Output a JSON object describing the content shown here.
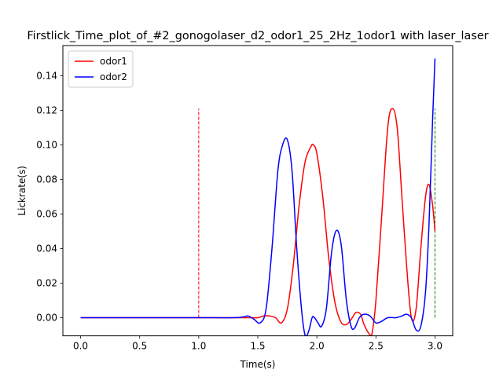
{
  "chart_data": {
    "type": "line",
    "title": "Firstlick_Time_plot_of_#2_gonogolaser_d2_odor1_25_2Hz_1odor1 with laser_laser",
    "xlabel": "Time(s)",
    "ylabel": "Lickrate(s)",
    "xlim": [
      -0.15,
      3.15
    ],
    "ylim": [
      -0.0105,
      0.1575
    ],
    "xticks": [
      0.0,
      0.5,
      1.0,
      1.5,
      2.0,
      2.5,
      3.0
    ],
    "xtick_labels": [
      "0.0",
      "0.5",
      "1.0",
      "1.5",
      "2.0",
      "2.5",
      "3.0"
    ],
    "yticks": [
      0.0,
      0.02,
      0.04,
      0.06,
      0.08,
      0.1,
      0.12,
      0.14
    ],
    "ytick_labels": [
      "0.00",
      "0.02",
      "0.04",
      "0.06",
      "0.08",
      "0.10",
      "0.12",
      "0.14"
    ],
    "grid": false,
    "legend_position": "top-left",
    "series": [
      {
        "name": "odor1",
        "color": "#ff0000",
        "x": [
          0.0,
          0.5,
          1.0,
          1.3,
          1.45,
          1.5,
          1.55,
          1.6,
          1.65,
          1.7,
          1.75,
          1.8,
          1.85,
          1.9,
          1.95,
          1.97,
          2.0,
          2.05,
          2.1,
          2.15,
          2.2,
          2.25,
          2.3,
          2.33,
          2.37,
          2.4,
          2.45,
          2.47,
          2.5,
          2.55,
          2.6,
          2.64,
          2.68,
          2.72,
          2.76,
          2.8,
          2.84,
          2.88,
          2.92,
          2.95,
          2.98,
          3.0
        ],
        "y": [
          0.0,
          0.0,
          0.0,
          0.0,
          0.0,
          0.0,
          0.001,
          0.001,
          0.0,
          -0.003,
          0.005,
          0.03,
          0.065,
          0.09,
          0.099,
          0.1,
          0.095,
          0.07,
          0.035,
          0.01,
          -0.002,
          -0.004,
          0.0,
          0.003,
          0.002,
          -0.004,
          -0.01,
          -0.008,
          0.01,
          0.06,
          0.11,
          0.121,
          0.11,
          0.07,
          0.03,
          0.0,
          0.005,
          0.04,
          0.07,
          0.077,
          0.065,
          0.05
        ]
      },
      {
        "name": "odor2",
        "color": "#0000ff",
        "x": [
          0.0,
          0.5,
          1.0,
          1.3,
          1.38,
          1.42,
          1.47,
          1.52,
          1.57,
          1.62,
          1.67,
          1.71,
          1.75,
          1.79,
          1.83,
          1.87,
          1.9,
          1.93,
          1.96,
          1.98,
          2.01,
          2.04,
          2.08,
          2.12,
          2.15,
          2.18,
          2.21,
          2.25,
          2.29,
          2.32,
          2.36,
          2.4,
          2.45,
          2.5,
          2.55,
          2.6,
          2.67,
          2.72,
          2.76,
          2.8,
          2.84,
          2.88,
          2.92,
          2.95,
          2.98,
          3.0
        ],
        "y": [
          0.0,
          0.0,
          0.0,
          0.0,
          0.0005,
          0.001,
          -0.001,
          -0.003,
          0.005,
          0.04,
          0.085,
          0.1,
          0.103,
          0.085,
          0.04,
          0.005,
          -0.01,
          -0.008,
          0.0,
          0.0,
          -0.003,
          -0.005,
          0.005,
          0.035,
          0.048,
          0.05,
          0.04,
          0.01,
          -0.005,
          -0.006,
          0.0,
          0.002,
          0.001,
          -0.003,
          -0.002,
          0.0,
          0.0,
          0.001,
          0.002,
          0.0,
          -0.007,
          -0.005,
          0.015,
          0.055,
          0.115,
          0.15
        ]
      }
    ],
    "markers": [
      {
        "x": 1.0,
        "y_start": 0.0,
        "y_end": 0.121,
        "color": "#ff0000",
        "style": "dashed"
      },
      {
        "x": 3.0,
        "y_start": 0.0,
        "y_end": 0.121,
        "color": "#008000",
        "style": "dashed"
      }
    ]
  }
}
